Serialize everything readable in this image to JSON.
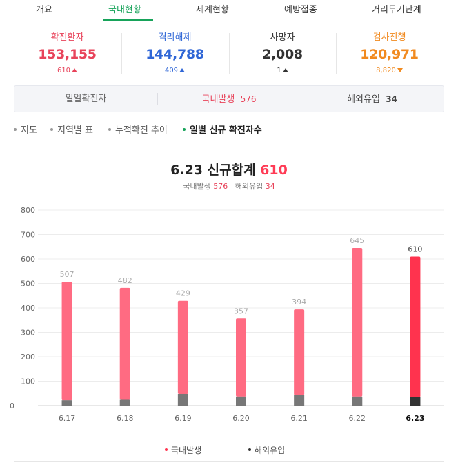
{
  "tabs": [
    {
      "label": "개요",
      "active": false
    },
    {
      "label": "국내현황",
      "active": true
    },
    {
      "label": "세계현황",
      "active": false
    },
    {
      "label": "예방접종",
      "active": false
    },
    {
      "label": "거리두기단계",
      "active": false
    }
  ],
  "stats": [
    {
      "label": "확진환자",
      "value": "153,155",
      "delta": "610",
      "direction": "up",
      "color": "#e8435a"
    },
    {
      "label": "격리해제",
      "value": "144,788",
      "delta": "409",
      "direction": "up",
      "color": "#2f66d6"
    },
    {
      "label": "사망자",
      "value": "2,008",
      "delta": "1",
      "direction": "up",
      "color": "#333333"
    },
    {
      "label": "검사진행",
      "value": "120,971",
      "delta": "8,820",
      "direction": "down",
      "color": "#f18a1f"
    }
  ],
  "daily_bar": {
    "label": "일일확진자",
    "domestic_label": "국내발생",
    "domestic_value": "576",
    "overseas_label": "해외유입",
    "overseas_value": "34"
  },
  "subnav": [
    {
      "label": "지도",
      "active": false
    },
    {
      "label": "지역별 표",
      "active": false
    },
    {
      "label": "누적확진 추이",
      "active": false
    },
    {
      "label": "일별 신규 확진자수",
      "active": true
    }
  ],
  "chart_header": {
    "title_prefix": "6.23 신규합계",
    "title_value": "610",
    "sub_domestic_label": "국내발생",
    "sub_domestic_value": "576",
    "sub_overseas_label": "해외유입",
    "sub_overseas_value": "34"
  },
  "chart_data": {
    "type": "bar",
    "stacked": true,
    "categories": [
      "6.17",
      "6.18",
      "6.19",
      "6.20",
      "6.21",
      "6.22",
      "6.23"
    ],
    "totals": [
      507,
      482,
      429,
      357,
      394,
      645,
      610
    ],
    "total_labels": [
      "507",
      "482",
      "429",
      "357",
      "394",
      "645",
      "610"
    ],
    "series": [
      {
        "name": "해외유입",
        "values": [
          22,
          24,
          48,
          37,
          43,
          37,
          34
        ],
        "color": "#777777"
      },
      {
        "name": "국내발생",
        "values": [
          485,
          458,
          381,
          320,
          351,
          608,
          576
        ],
        "color": "#ff6b82"
      }
    ],
    "highlight_index": 6,
    "highlight_colors": {
      "domestic": "#ff334e",
      "overseas": "#333333"
    },
    "y_ticks": [
      0,
      100,
      200,
      300,
      400,
      500,
      600,
      700,
      800
    ],
    "y_tick_labels": [
      "0",
      "100",
      "200",
      "300",
      "400",
      "500",
      "600",
      "700",
      "800"
    ],
    "ylim": [
      0,
      800
    ],
    "grid": true
  },
  "legend": [
    {
      "label": "국내발생",
      "color": "#ff334e"
    },
    {
      "label": "해외유입",
      "color": "#333333"
    }
  ]
}
